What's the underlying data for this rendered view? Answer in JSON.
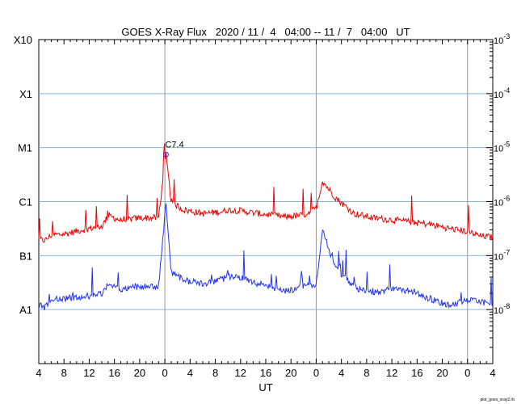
{
  "chart_data": {
    "type": "line",
    "title": "GOES X-Ray Flux   2020 / 11 /  4   04:00 -- 11 /  7   04:00   UT",
    "xlabel": "UT",
    "x_start": "2020-11-04 04:00",
    "x_end": "2020-11-07 04:00",
    "x_tick_labels": [
      "4",
      "8",
      "12",
      "16",
      "20",
      "0",
      "4",
      "8",
      "12",
      "16",
      "20",
      "0",
      "4",
      "8",
      "12",
      "16",
      "20",
      "0",
      "4"
    ],
    "day_boundaries": [
      "2020-11-05 00:00",
      "2020-11-06 00:00",
      "2020-11-07 00:00"
    ],
    "yscale": "log",
    "ylim": [
      1e-09,
      0.001
    ],
    "flare_class_labels": [
      "A1",
      "B1",
      "C1",
      "M1",
      "X1",
      "X10"
    ],
    "right_axis_labels": [
      "10-8",
      "10-7",
      "10-6",
      "10-5",
      "10-4",
      "10-3"
    ],
    "grid_lines": [
      1e-08,
      1e-07,
      1e-06,
      1e-05,
      0.0001
    ],
    "annotation": {
      "text": "C7.4",
      "time": "2020-11-05 00:10",
      "value": 7.4e-06
    },
    "series": [
      {
        "color": "#ee0000",
        "x": [
          "2020-11-04 04:00",
          "2020-11-04 05:00",
          "2020-11-04 06:00",
          "2020-11-04 08:00",
          "2020-11-04 11:00",
          "2020-11-04 14:00",
          "2020-11-04 15:00",
          "2020-11-04 17:00",
          "2020-11-04 20:00",
          "2020-11-04 23:00",
          "2020-11-05 00:10",
          "2020-11-05 01:00",
          "2020-11-05 03:00",
          "2020-11-05 06:00",
          "2020-11-05 09:00",
          "2020-11-05 10:00",
          "2020-11-05 12:00",
          "2020-11-05 14:00",
          "2020-11-05 16:00",
          "2020-11-05 19:00",
          "2020-11-05 22:00",
          "2020-11-06 00:00",
          "2020-11-06 01:00",
          "2020-11-06 03:00",
          "2020-11-06 06:00",
          "2020-11-06 09:00",
          "2020-11-06 12:00",
          "2020-11-06 15:00",
          "2020-11-06 18:00",
          "2020-11-06 21:00",
          "2020-11-07 00:00",
          "2020-11-07 02:00",
          "2020-11-07 04:00"
        ],
        "y": [
          2e-07,
          1.9e-07,
          2.4e-07,
          2.5e-07,
          3e-07,
          3.5e-07,
          5.5e-07,
          4.5e-07,
          5e-07,
          5e-07,
          7.4e-06,
          1e-06,
          7e-07,
          6e-07,
          6.5e-07,
          7e-07,
          6.8e-07,
          6.2e-07,
          5.8e-07,
          5.2e-07,
          5.6e-07,
          7.5e-07,
          2.4e-06,
          1.2e-06,
          6e-07,
          5e-07,
          4.6e-07,
          4.2e-07,
          3.8e-07,
          3.2e-07,
          2.8e-07,
          2.3e-07,
          2.2e-07
        ]
      },
      {
        "color": "#2233ee",
        "x": [
          "2020-11-04 04:00",
          "2020-11-04 05:00",
          "2020-11-04 06:00",
          "2020-11-04 08:00",
          "2020-11-04 11:00",
          "2020-11-04 14:00",
          "2020-11-04 15:00",
          "2020-11-04 17:00",
          "2020-11-04 20:00",
          "2020-11-04 23:00",
          "2020-11-05 00:10",
          "2020-11-05 01:00",
          "2020-11-05 03:00",
          "2020-11-05 06:00",
          "2020-11-05 09:00",
          "2020-11-05 10:00",
          "2020-11-05 12:00",
          "2020-11-05 14:00",
          "2020-11-05 16:00",
          "2020-11-05 19:00",
          "2020-11-05 22:00",
          "2020-11-06 00:00",
          "2020-11-06 01:00",
          "2020-11-06 03:00",
          "2020-11-06 06:00",
          "2020-11-06 09:00",
          "2020-11-06 12:00",
          "2020-11-06 15:00",
          "2020-11-06 18:00",
          "2020-11-06 21:00",
          "2020-11-07 00:00",
          "2020-11-07 02:00",
          "2020-11-07 04:00"
        ],
        "y": [
          1.2e-08,
          1.1e-08,
          1.5e-08,
          1.6e-08,
          1.7e-08,
          2e-08,
          3e-08,
          2.4e-08,
          2.7e-08,
          2.6e-08,
          1e-06,
          5e-08,
          3.5e-08,
          3e-08,
          3.6e-08,
          4e-08,
          3.8e-08,
          3.2e-08,
          2.8e-08,
          2.2e-08,
          2.6e-08,
          3e-08,
          3e-07,
          6e-08,
          2.6e-08,
          2e-08,
          2.4e-08,
          2.2e-08,
          1.6e-08,
          1.2e-08,
          1.5e-08,
          1.4e-08,
          1.3e-08
        ]
      }
    ]
  },
  "footer": {
    "credit": "plot_goes_xray2.rb"
  }
}
